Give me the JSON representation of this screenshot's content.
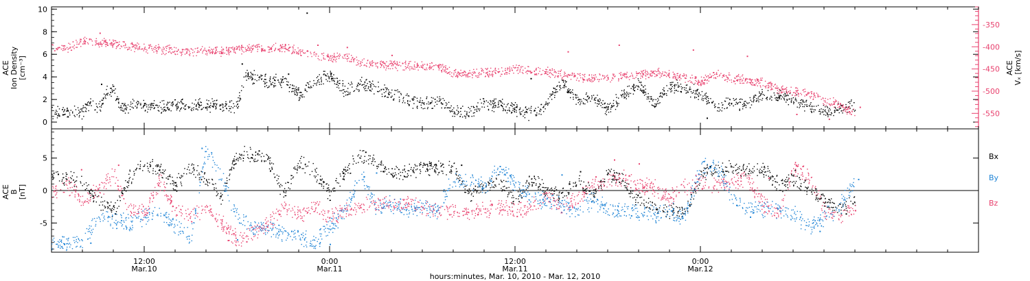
{
  "colors": {
    "black": "#000000",
    "pink": "#e8416e",
    "blue": "#1f84d6"
  },
  "chart_data": [
    {
      "type": "scatter",
      "panel": "top",
      "ylabel_left": [
        "ACE",
        "Ion Density",
        "[cm⁻³]"
      ],
      "ylabel_right": [
        "ACE",
        "Vₓ [km/s]"
      ],
      "yticks_left": [
        "0",
        "2",
        "4",
        "6",
        "8",
        "10"
      ],
      "yticks_right": [
        "-350",
        "-400",
        "-450",
        "-500",
        "-550"
      ],
      "ylim_left": [
        -0.6,
        10.2
      ],
      "ylim_right": [
        -585,
        -310
      ],
      "xlim_hours": [
        0,
        60
      ],
      "series": [
        {
          "axis": "left",
          "color": "black",
          "x": [
            0,
            1,
            2,
            2.5,
            3,
            3.5,
            4,
            4.5,
            5,
            6,
            7,
            8,
            9,
            10,
            11,
            11.5,
            12,
            12.5,
            13,
            14,
            15,
            16,
            17,
            18,
            19,
            20,
            21,
            22,
            23,
            24,
            25,
            26,
            27,
            28,
            29,
            30,
            31,
            32,
            33,
            34,
            35,
            36,
            37,
            38,
            39,
            40,
            41,
            42,
            43,
            44,
            45,
            46,
            47,
            48,
            49,
            50,
            51,
            52
          ],
          "y": [
            0.8,
            0.9,
            0.9,
            1.8,
            1.0,
            2.5,
            3.0,
            1.2,
            1.5,
            1.5,
            1.4,
            1.5,
            1.5,
            1.6,
            1.5,
            1.4,
            1.4,
            4.2,
            4.0,
            3.6,
            3.8,
            2.5,
            3.5,
            4.2,
            2.8,
            3.5,
            3.0,
            2.5,
            2.0,
            1.6,
            2.0,
            1.0,
            0.8,
            1.8,
            1.5,
            1.2,
            0.8,
            1.5,
            3.6,
            2.0,
            2.2,
            1.2,
            2.4,
            3.4,
            1.5,
            3.2,
            3.0,
            2.5,
            1.2,
            1.8,
            1.6,
            2.5,
            2.4,
            2.0,
            1.5,
            0.9,
            1.2,
            1.6
          ],
          "markers": [
            {
              "x": 0.7,
              "y": 0.7
            },
            {
              "x": 1.8,
              "y": 0.95
            },
            {
              "x": 3.2,
              "y": 3.4
            },
            {
              "x": 9.5,
              "y": 1.6
            },
            {
              "x": 12.3,
              "y": 5.2
            },
            {
              "x": 16.5,
              "y": 9.7
            },
            {
              "x": 15.3,
              "y": 4.3
            },
            {
              "x": 21.8,
              "y": 2.5
            },
            {
              "x": 31.0,
              "y": 3.9
            },
            {
              "x": 34.6,
              "y": 2.0
            },
            {
              "x": 42.4,
              "y": 0.4
            },
            {
              "x": 47.5,
              "y": 2.4
            }
          ]
        },
        {
          "axis": "right",
          "color": "pink",
          "x": [
            0,
            1,
            2,
            3,
            4,
            5,
            6,
            7,
            8,
            9,
            10,
            11,
            12,
            13,
            14,
            15,
            16,
            17,
            18,
            19,
            20,
            21,
            22,
            23,
            24,
            25,
            26,
            27,
            28,
            29,
            30,
            31,
            32,
            33,
            34,
            35,
            36,
            37,
            38,
            39,
            40,
            41,
            42,
            43,
            44,
            45,
            46,
            47,
            48,
            49,
            50,
            51,
            52
          ],
          "y": [
            -405,
            -402,
            -385,
            -390,
            -392,
            -398,
            -402,
            -405,
            -408,
            -410,
            -407,
            -410,
            -405,
            -402,
            -405,
            -400,
            -410,
            -415,
            -425,
            -420,
            -435,
            -438,
            -440,
            -442,
            -442,
            -445,
            -458,
            -460,
            -458,
            -456,
            -450,
            -452,
            -456,
            -460,
            -470,
            -470,
            -468,
            -465,
            -462,
            -458,
            -462,
            -470,
            -478,
            -460,
            -470,
            -475,
            -480,
            -495,
            -500,
            -505,
            -520,
            -530,
            -550
          ],
          "markers": [
            {
              "x": 3.1,
              "y": -368
            },
            {
              "x": 17.2,
              "y": -395
            },
            {
              "x": 19.1,
              "y": -400
            },
            {
              "x": 22.0,
              "y": -418
            },
            {
              "x": 33.4,
              "y": -410
            },
            {
              "x": 36.7,
              "y": -395
            },
            {
              "x": 41.5,
              "y": -406
            },
            {
              "x": 45.0,
              "y": -420
            },
            {
              "x": 48.2,
              "y": -551
            },
            {
              "x": 50.3,
              "y": -562
            },
            {
              "x": 51.6,
              "y": -545
            },
            {
              "x": 52.3,
              "y": -535
            }
          ]
        }
      ]
    },
    {
      "type": "scatter",
      "panel": "bottom",
      "ylabel_left": [
        "ACE",
        "B",
        "[nT]"
      ],
      "yticks_left": [
        "5",
        "0",
        "-5"
      ],
      "ylim_left": [
        -9.5,
        9.5
      ],
      "zero_line": 0,
      "xlim_hours": [
        0,
        60
      ],
      "legend": [
        {
          "label": "Bx",
          "color": "black"
        },
        {
          "label": "By",
          "color": "blue"
        },
        {
          "label": "Bz",
          "color": "pink"
        }
      ],
      "series": [
        {
          "name": "Bx",
          "color": "black",
          "x": [
            0,
            1,
            2,
            3,
            4,
            5,
            6,
            7,
            8,
            9,
            10,
            11,
            12,
            13,
            14,
            15,
            16,
            17,
            18,
            19,
            20,
            21,
            22,
            23,
            24,
            25,
            26,
            27,
            28,
            29,
            30,
            31,
            32,
            33,
            34,
            35,
            36,
            37,
            38,
            39,
            40,
            41,
            42,
            43,
            44,
            45,
            46,
            47,
            48,
            49,
            50,
            51,
            52
          ],
          "y": [
            2.0,
            1.8,
            1.5,
            -1.5,
            -3.0,
            2.0,
            4.5,
            3.0,
            1.0,
            3.5,
            2.0,
            -1.0,
            5.8,
            5.5,
            5.0,
            -0.5,
            4.5,
            3.0,
            -0.5,
            3.0,
            5.5,
            4.5,
            2.5,
            3.0,
            3.5,
            3.5,
            3.8,
            -0.5,
            0.5,
            1.5,
            -1.5,
            2.0,
            0.0,
            -0.5,
            1.5,
            -0.5,
            2.5,
            1.5,
            -1.5,
            -2.5,
            -3.0,
            -3.5,
            2.5,
            3.0,
            3.5,
            3.0,
            3.5,
            1.0,
            1.5,
            0.5,
            -1.5,
            -3.0,
            -1.0
          ],
          "markers": [
            {
              "x": 0.4,
              "y": 2.6
            },
            {
              "x": 4.1,
              "y": -3.5
            },
            {
              "x": 8.0,
              "y": 1.3
            },
            {
              "x": 13.4,
              "y": 6.2
            },
            {
              "x": 20.3,
              "y": 6.0
            },
            {
              "x": 26.5,
              "y": 4.0
            },
            {
              "x": 30.4,
              "y": -1.0
            },
            {
              "x": 34.2,
              "y": 3.0
            },
            {
              "x": 39.1,
              "y": -2.8
            },
            {
              "x": 42.6,
              "y": 3.8
            },
            {
              "x": 48.1,
              "y": 3.2
            },
            {
              "x": 51.4,
              "y": -3.5
            }
          ]
        },
        {
          "name": "By",
          "color": "blue",
          "x": [
            0,
            1,
            2,
            3,
            4,
            5,
            6,
            7,
            8,
            9,
            10,
            11,
            12,
            13,
            14,
            15,
            16,
            17,
            18,
            19,
            20,
            21,
            22,
            23,
            24,
            25,
            26,
            27,
            28,
            29,
            30,
            31,
            32,
            33,
            34,
            35,
            36,
            37,
            38,
            39,
            40,
            41,
            42,
            43,
            44,
            45,
            46,
            47,
            48,
            49,
            50,
            51,
            52
          ],
          "y": [
            -8.0,
            -8.0,
            -8.0,
            -4.0,
            -4.5,
            -5.0,
            -4.0,
            -3.5,
            -5.5,
            -7.0,
            6.5,
            2.0,
            -4.0,
            -5.5,
            -6.0,
            -6.5,
            -7.0,
            -8.0,
            -5.5,
            -3.0,
            2.5,
            -2.5,
            -2.0,
            -3.0,
            -2.5,
            -3.0,
            2.0,
            1.5,
            0.5,
            3.5,
            1.0,
            -1.0,
            -1.5,
            -2.0,
            -3.0,
            -1.5,
            -2.5,
            -3.0,
            -3.5,
            -3.5,
            -3.0,
            -4.0,
            3.5,
            4.0,
            -1.0,
            -2.5,
            -3.0,
            -3.0,
            -3.5,
            -5.5,
            -4.0,
            -2.5,
            1.5
          ],
          "markers": [
            {
              "x": 0.8,
              "y": -8.2
            },
            {
              "x": 2.5,
              "y": -8.0
            },
            {
              "x": 9.7,
              "y": 6.6
            },
            {
              "x": 12.0,
              "y": -7.5
            },
            {
              "x": 18.0,
              "y": -8.2
            },
            {
              "x": 21.0,
              "y": 2.8
            },
            {
              "x": 29.0,
              "y": 3.8
            },
            {
              "x": 33.0,
              "y": 2.5
            },
            {
              "x": 37.5,
              "y": -3.8
            },
            {
              "x": 45.2,
              "y": -4.0
            },
            {
              "x": 49.7,
              "y": -6.2
            },
            {
              "x": 52.2,
              "y": 1.8
            }
          ]
        },
        {
          "name": "Bz",
          "color": "pink",
          "x": [
            0,
            1,
            2,
            3,
            4,
            5,
            6,
            7,
            8,
            9,
            10,
            11,
            12,
            13,
            14,
            15,
            16,
            17,
            18,
            19,
            20,
            21,
            22,
            23,
            24,
            25,
            26,
            27,
            28,
            29,
            30,
            31,
            32,
            33,
            34,
            35,
            36,
            37,
            38,
            39,
            40,
            41,
            42,
            43,
            44,
            45,
            46,
            47,
            48,
            49,
            50,
            51,
            52
          ],
          "y": [
            -0.5,
            1.0,
            -1.5,
            0.0,
            2.5,
            -2.5,
            -3.5,
            1.5,
            -3.0,
            -4.0,
            -2.5,
            -5.0,
            -7.5,
            -6.5,
            -5.0,
            -2.5,
            -3.5,
            -2.5,
            -4.0,
            -3.0,
            -2.5,
            -2.0,
            -2.0,
            -2.0,
            -2.5,
            -3.0,
            -3.0,
            -3.5,
            -3.0,
            -2.5,
            -3.0,
            -2.5,
            -1.0,
            -2.5,
            -1.5,
            1.0,
            1.5,
            2.0,
            1.0,
            0.5,
            -1.0,
            0.5,
            1.5,
            0.5,
            1.5,
            2.0,
            -2.0,
            -3.5,
            3.5,
            2.0,
            -3.0,
            -4.0,
            -2.5
          ],
          "markers": [
            {
              "x": 1.9,
              "y": 3.3
            },
            {
              "x": 4.3,
              "y": 4.0
            },
            {
              "x": 11.4,
              "y": -7.6
            },
            {
              "x": 12.6,
              "y": -7.8
            },
            {
              "x": 24.0,
              "y": -2.5
            },
            {
              "x": 30.1,
              "y": -3.9
            },
            {
              "x": 35.2,
              "y": 2.2
            },
            {
              "x": 36.4,
              "y": 4.8
            },
            {
              "x": 38.0,
              "y": 4.2
            },
            {
              "x": 46.4,
              "y": 2.0
            },
            {
              "x": 48.6,
              "y": 3.8
            },
            {
              "x": 52.0,
              "y": -3.0
            }
          ]
        }
      ]
    }
  ],
  "x_axis": {
    "title": "hours:minutes, Mar. 10, 2010 - Mar. 12, 2010",
    "major_ticks": [
      {
        "x": 6,
        "time": "12:00",
        "date": "Mar.10"
      },
      {
        "x": 18,
        "time": "0:00",
        "date": "Mar.11"
      },
      {
        "x": 30,
        "time": "12:00",
        "date": "Mar.11"
      },
      {
        "x": 42,
        "time": "0:00",
        "date": "Mar.12"
      }
    ]
  }
}
